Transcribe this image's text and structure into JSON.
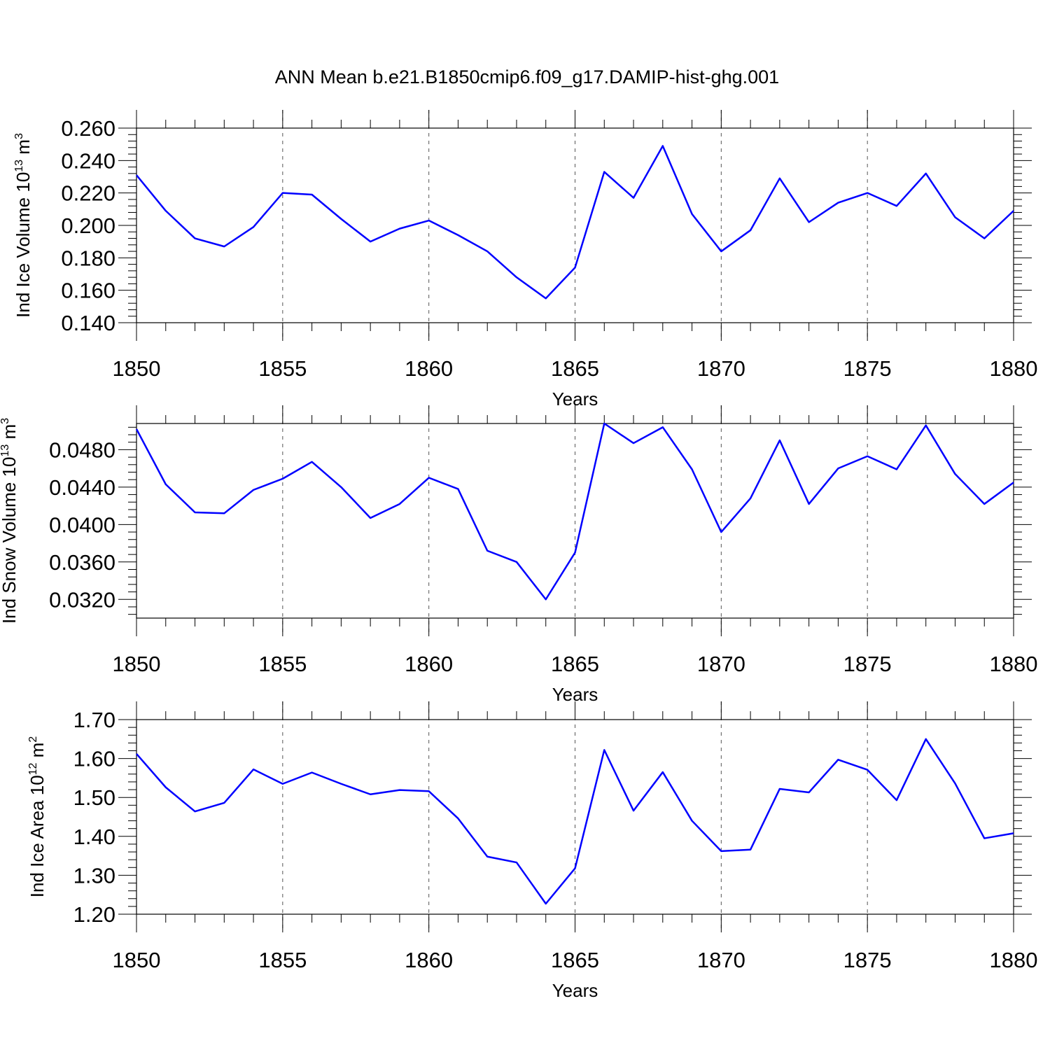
{
  "title": "ANN Mean b.e21.B1850cmip6.f09_g17.DAMIP-hist-ghg.001",
  "colors": {
    "line": "#0000ff",
    "axis": "#000000",
    "grid": "#555555"
  },
  "chart_data": [
    {
      "type": "line",
      "title": "ANN Mean b.e21.B1850cmip6.f09_g17.DAMIP-hist-ghg.001",
      "xlabel": "Years",
      "ylabel": "Ind Ice Volume 10",
      "ylabel_exp": "13",
      "ylabel_unit": " m",
      "ylabel_unit_exp": "3",
      "xlim": [
        1850,
        1880
      ],
      "ylim": [
        0.14,
        0.26
      ],
      "xticks": [
        1850,
        1855,
        1860,
        1865,
        1870,
        1875,
        1880
      ],
      "xtick_labels": [
        "1850",
        "1855",
        "1860",
        "1865",
        "1870",
        "1875",
        "1880"
      ],
      "yticks": [
        0.14,
        0.16,
        0.18,
        0.2,
        0.22,
        0.24,
        0.26
      ],
      "ytick_labels": [
        "0.140",
        "0.160",
        "0.180",
        "0.200",
        "0.220",
        "0.240",
        "0.260"
      ],
      "grid_x": true,
      "x": [
        1850,
        1851,
        1852,
        1853,
        1854,
        1855,
        1856,
        1857,
        1858,
        1859,
        1860,
        1861,
        1862,
        1863,
        1864,
        1865,
        1866,
        1867,
        1868,
        1869,
        1870,
        1871,
        1872,
        1873,
        1874,
        1875,
        1876,
        1877,
        1878,
        1879,
        1880
      ],
      "series": [
        {
          "name": "Ind Ice Volume",
          "values": [
            0.231,
            0.209,
            0.192,
            0.187,
            0.199,
            0.22,
            0.219,
            0.204,
            0.19,
            0.198,
            0.203,
            0.194,
            0.184,
            0.168,
            0.155,
            0.174,
            0.233,
            0.217,
            0.249,
            0.207,
            0.184,
            0.197,
            0.229,
            0.202,
            0.214,
            0.22,
            0.212,
            0.232,
            0.205,
            0.192,
            0.209
          ]
        }
      ]
    },
    {
      "type": "line",
      "xlabel": "Years",
      "ylabel": "Ind Snow Volume 10",
      "ylabel_exp": "13",
      "ylabel_unit": " m",
      "ylabel_unit_exp": "3",
      "xlim": [
        1850,
        1880
      ],
      "ylim": [
        0.03,
        0.0508
      ],
      "xticks": [
        1850,
        1855,
        1860,
        1865,
        1870,
        1875,
        1880
      ],
      "xtick_labels": [
        "1850",
        "1855",
        "1860",
        "1865",
        "1870",
        "1875",
        "1880"
      ],
      "yticks": [
        0.032,
        0.036,
        0.04,
        0.044,
        0.048
      ],
      "ytick_labels": [
        "0.0320",
        "0.0360",
        "0.0400",
        "0.0440",
        "0.0480"
      ],
      "grid_x": true,
      "x": [
        1850,
        1851,
        1852,
        1853,
        1854,
        1855,
        1856,
        1857,
        1858,
        1859,
        1860,
        1861,
        1862,
        1863,
        1864,
        1865,
        1866,
        1867,
        1868,
        1869,
        1870,
        1871,
        1872,
        1873,
        1874,
        1875,
        1876,
        1877,
        1878,
        1879,
        1880
      ],
      "series": [
        {
          "name": "Ind Snow Volume",
          "values": [
            0.0502,
            0.0443,
            0.0413,
            0.0412,
            0.0437,
            0.0449,
            0.0467,
            0.044,
            0.0407,
            0.0422,
            0.045,
            0.0438,
            0.0372,
            0.036,
            0.032,
            0.037,
            0.0508,
            0.0487,
            0.0504,
            0.0459,
            0.0392,
            0.0428,
            0.049,
            0.0422,
            0.046,
            0.0473,
            0.0459,
            0.0506,
            0.0454,
            0.0422,
            0.0445
          ]
        }
      ]
    },
    {
      "type": "line",
      "xlabel": "Years",
      "ylabel": "Ind Ice Area 10",
      "ylabel_exp": "12",
      "ylabel_unit": " m",
      "ylabel_unit_exp": "2",
      "xlim": [
        1850,
        1880
      ],
      "ylim": [
        1.2,
        1.7
      ],
      "xticks": [
        1850,
        1855,
        1860,
        1865,
        1870,
        1875,
        1880
      ],
      "xtick_labels": [
        "1850",
        "1855",
        "1860",
        "1865",
        "1870",
        "1875",
        "1880"
      ],
      "yticks": [
        1.2,
        1.3,
        1.4,
        1.5,
        1.6,
        1.7
      ],
      "ytick_labels": [
        "1.20",
        "1.30",
        "1.40",
        "1.50",
        "1.60",
        "1.70"
      ],
      "grid_x": true,
      "x": [
        1850,
        1851,
        1852,
        1853,
        1854,
        1855,
        1856,
        1857,
        1858,
        1859,
        1860,
        1861,
        1862,
        1863,
        1864,
        1865,
        1866,
        1867,
        1868,
        1869,
        1870,
        1871,
        1872,
        1873,
        1874,
        1875,
        1876,
        1877,
        1878,
        1879,
        1880
      ],
      "series": [
        {
          "name": "Ind Ice Area",
          "values": [
            1.612,
            1.526,
            1.464,
            1.486,
            1.572,
            1.535,
            1.564,
            1.535,
            1.508,
            1.519,
            1.516,
            1.446,
            1.348,
            1.333,
            1.227,
            1.318,
            1.622,
            1.466,
            1.565,
            1.44,
            1.362,
            1.366,
            1.522,
            1.513,
            1.597,
            1.571,
            1.493,
            1.65,
            1.536,
            1.395,
            1.408
          ]
        }
      ]
    }
  ]
}
